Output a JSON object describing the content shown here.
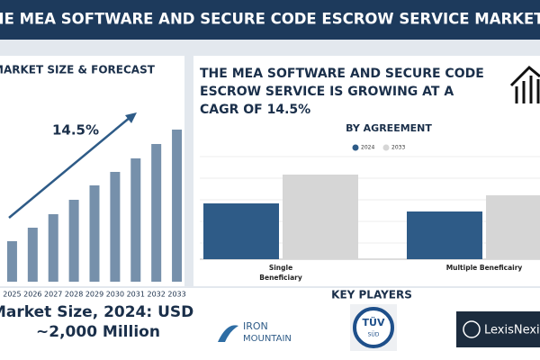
{
  "header": {
    "title": "THE MEA SOFTWARE AND SECURE CODE ESCROW SERVICE MARKET"
  },
  "chart_data": [
    {
      "type": "bar",
      "title": "MARKET SIZE & FORECAST",
      "annotation": "14.5%",
      "categories": [
        "2025",
        "2026",
        "2027",
        "2028",
        "2029",
        "2030",
        "2031",
        "2032",
        "2033"
      ],
      "values": [
        45,
        60,
        75,
        91,
        107,
        122,
        137,
        153,
        169
      ],
      "color": "#7690ab",
      "ylim": [
        0,
        175
      ]
    },
    {
      "type": "grouped-bar",
      "title": "BY AGREEMENT",
      "categories": [
        "Single Beneficiary",
        "Multiple Beneficairy"
      ],
      "series": [
        {
          "name": "2024",
          "color": "#2e5b87",
          "values": [
            62,
            53
          ]
        },
        {
          "name": "2033",
          "color": "#d6d6d6",
          "values": [
            94,
            71
          ]
        }
      ],
      "ylim": [
        0,
        118
      ],
      "legend": "top"
    }
  ],
  "growth": {
    "lines": [
      "THE MEA SOFTWARE AND SECURE CODE",
      "ESCROW SERVICE  IS GROWING AT A",
      "CAGR OF 14.5%"
    ]
  },
  "market_size": {
    "lines": [
      "Market Size, 2024: USD",
      "~2,000 Million"
    ]
  },
  "key_players": {
    "title": "KEY PLAYERS",
    "logos": [
      {
        "lines": [
          "IRON",
          "MOUNTAIN"
        ]
      },
      {
        "lines": [
          "TÜV",
          "SÜD"
        ]
      },
      {
        "lines": [
          "LexisNexis"
        ]
      }
    ]
  }
}
